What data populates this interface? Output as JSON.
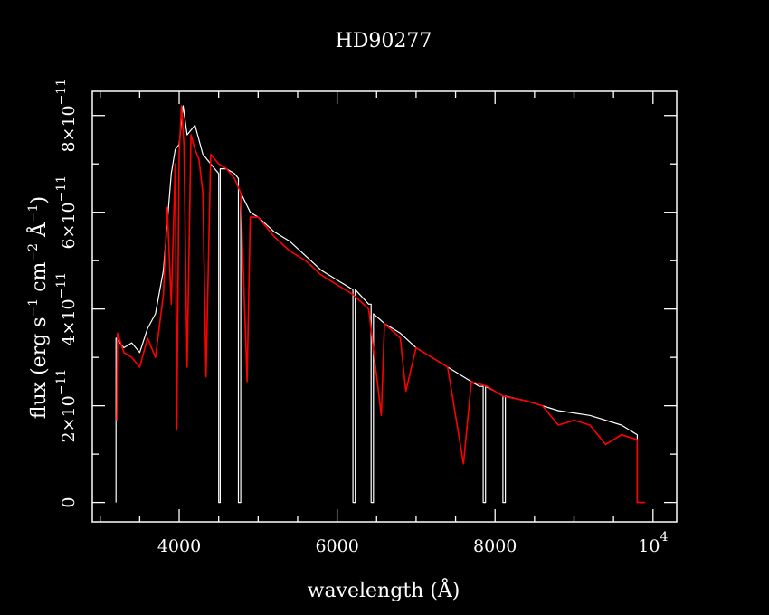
{
  "chart_data": {
    "type": "line",
    "title": "HD90277",
    "xlabel": "wavelength (Å)",
    "ylabel": {
      "prefix": "flux (erg s",
      "exp1": "−1",
      "mid1": " cm",
      "exp2": "−2",
      "mid2": " Å",
      "exp3": "−1",
      "suffix": ")"
    },
    "xlim": [
      2900,
      10300
    ],
    "ylim": [
      -4e-12,
      8.5e-11
    ],
    "x_ticks": [
      {
        "value": 4000,
        "label": "4000"
      },
      {
        "value": 6000,
        "label": "6000"
      },
      {
        "value": 8000,
        "label": "8000"
      },
      {
        "value": 10000,
        "label": "10",
        "exp": "4"
      }
    ],
    "y_ticks": [
      {
        "value": 0,
        "label": "0"
      },
      {
        "value": 2e-11,
        "label": "2×10",
        "exp": "−11"
      },
      {
        "value": 4e-11,
        "label": "4×10",
        "exp": "−11"
      },
      {
        "value": 6e-11,
        "label": "6×10",
        "exp": "−11"
      },
      {
        "value": 8e-11,
        "label": "8×10",
        "exp": "−11"
      }
    ],
    "grid": false,
    "colors": {
      "background": "#000000",
      "axes": "#ffffff",
      "series_observed": "#ffffff",
      "series_model": "#ff0000"
    },
    "series": [
      {
        "color": "#ffffff",
        "points": [
          [
            3200,
            0
          ],
          [
            3200,
            3.4e-11
          ],
          [
            3300,
            3.2e-11
          ],
          [
            3400,
            3.3e-11
          ],
          [
            3500,
            3.1e-11
          ],
          [
            3600,
            3.6e-11
          ],
          [
            3700,
            3.9e-11
          ],
          [
            3800,
            4.8e-11
          ],
          [
            3900,
            6.8e-11
          ],
          [
            3950,
            7.3e-11
          ],
          [
            4000,
            7.4e-11
          ],
          [
            4050,
            8.2e-11
          ],
          [
            4100,
            7.6e-11
          ],
          [
            4200,
            7.8e-11
          ],
          [
            4300,
            7.2e-11
          ],
          [
            4400,
            7e-11
          ],
          [
            4500,
            6.8e-11
          ],
          [
            4500,
            0
          ],
          [
            4520,
            0
          ],
          [
            4520,
            6.9e-11
          ],
          [
            4600,
            6.9e-11
          ],
          [
            4700,
            6.8e-11
          ],
          [
            4750,
            6.7e-11
          ],
          [
            4750,
            0
          ],
          [
            4780,
            0
          ],
          [
            4780,
            6.4e-11
          ],
          [
            4900,
            6e-11
          ],
          [
            5000,
            5.9e-11
          ],
          [
            5200,
            5.6e-11
          ],
          [
            5400,
            5.4e-11
          ],
          [
            5600,
            5.1e-11
          ],
          [
            5800,
            4.8e-11
          ],
          [
            6000,
            4.6e-11
          ],
          [
            6200,
            4.4e-11
          ],
          [
            6200,
            0
          ],
          [
            6230,
            0
          ],
          [
            6230,
            4.4e-11
          ],
          [
            6400,
            4.1e-11
          ],
          [
            6430,
            4.1e-11
          ],
          [
            6430,
            0
          ],
          [
            6460,
            0
          ],
          [
            6460,
            3.9e-11
          ],
          [
            6600,
            3.7e-11
          ],
          [
            6800,
            3.5e-11
          ],
          [
            7000,
            3.2e-11
          ],
          [
            7200,
            3e-11
          ],
          [
            7400,
            2.8e-11
          ],
          [
            7600,
            2.6e-11
          ],
          [
            7800,
            2.4e-11
          ],
          [
            7850,
            2.4e-11
          ],
          [
            7850,
            0
          ],
          [
            7880,
            0
          ],
          [
            7880,
            2.4e-11
          ],
          [
            8000,
            2.3e-11
          ],
          [
            8100,
            2.2e-11
          ],
          [
            8100,
            0
          ],
          [
            8130,
            0
          ],
          [
            8130,
            2.2e-11
          ],
          [
            8400,
            2.1e-11
          ],
          [
            8800,
            1.9e-11
          ],
          [
            9200,
            1.8e-11
          ],
          [
            9600,
            1.6e-11
          ],
          [
            9800,
            1.4e-11
          ],
          [
            9800,
            0
          ]
        ]
      },
      {
        "color": "#ff0000",
        "points": [
          [
            3210,
            1.7e-11
          ],
          [
            3220,
            3.5e-11
          ],
          [
            3300,
            3.1e-11
          ],
          [
            3400,
            3e-11
          ],
          [
            3500,
            2.8e-11
          ],
          [
            3600,
            3.4e-11
          ],
          [
            3700,
            3e-11
          ],
          [
            3800,
            4.3e-11
          ],
          [
            3850,
            6.1e-11
          ],
          [
            3900,
            4.1e-11
          ],
          [
            3950,
            7e-11
          ],
          [
            3970,
            1.5e-11
          ],
          [
            4000,
            7.2e-11
          ],
          [
            4030,
            8.2e-11
          ],
          [
            4060,
            7.4e-11
          ],
          [
            4100,
            2.8e-11
          ],
          [
            4150,
            7.6e-11
          ],
          [
            4200,
            7.3e-11
          ],
          [
            4250,
            7.1e-11
          ],
          [
            4300,
            6.4e-11
          ],
          [
            4340,
            2.6e-11
          ],
          [
            4400,
            7.2e-11
          ],
          [
            4500,
            7e-11
          ],
          [
            4600,
            6.9e-11
          ],
          [
            4700,
            6.7e-11
          ],
          [
            4780,
            6.4e-11
          ],
          [
            4860,
            2.5e-11
          ],
          [
            4900,
            5.9e-11
          ],
          [
            5000,
            5.9e-11
          ],
          [
            5200,
            5.5e-11
          ],
          [
            5400,
            5.2e-11
          ],
          [
            5600,
            5e-11
          ],
          [
            5800,
            4.7e-11
          ],
          [
            6000,
            4.5e-11
          ],
          [
            6200,
            4.3e-11
          ],
          [
            6400,
            4e-11
          ],
          [
            6560,
            1.8e-11
          ],
          [
            6600,
            3.7e-11
          ],
          [
            6800,
            3.4e-11
          ],
          [
            6870,
            2.3e-11
          ],
          [
            7000,
            3.2e-11
          ],
          [
            7200,
            3e-11
          ],
          [
            7400,
            2.8e-11
          ],
          [
            7600,
            8e-12
          ],
          [
            7700,
            2.5e-11
          ],
          [
            7900,
            2.4e-11
          ],
          [
            8100,
            2.2e-11
          ],
          [
            8400,
            2.1e-11
          ],
          [
            8600,
            2e-11
          ],
          [
            8800,
            1.6e-11
          ],
          [
            9000,
            1.7e-11
          ],
          [
            9200,
            1.6e-11
          ],
          [
            9400,
            1.2e-11
          ],
          [
            9600,
            1.4e-11
          ],
          [
            9800,
            1.3e-11
          ],
          [
            9800,
            0
          ],
          [
            9900,
            0
          ]
        ]
      }
    ]
  }
}
